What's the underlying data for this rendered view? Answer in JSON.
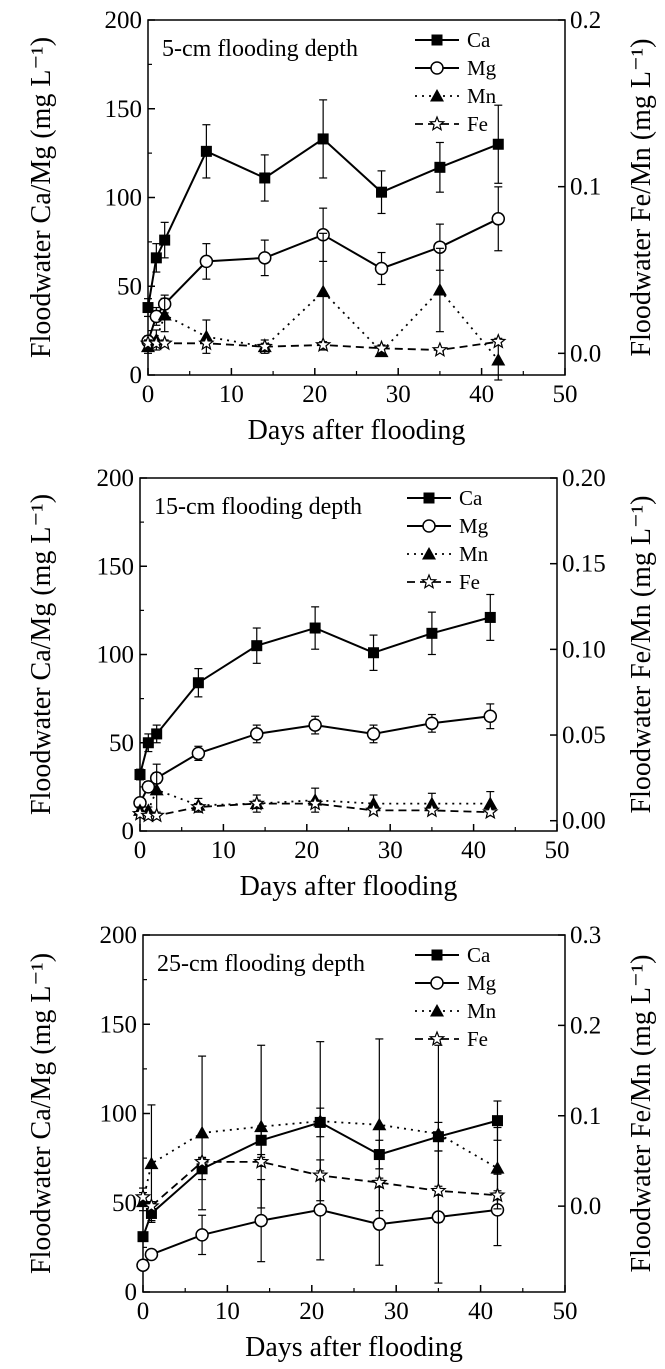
{
  "colors": {
    "ink": "#000000",
    "background": "#ffffff"
  },
  "chart_data": [
    {
      "type": "line",
      "title": "5-cm flooding depth",
      "xlabel": "Days after flooding",
      "ylabel": "Floodwater Ca/Mg (mg L⁻¹)",
      "y2label": "Floodwater Fe/Mn (mg L⁻¹)",
      "xlim": [
        0,
        50
      ],
      "ylim": [
        0,
        200
      ],
      "y2lim": [
        -0.013,
        0.2
      ],
      "xticks": [
        "0",
        "10",
        "20",
        "30",
        "40",
        "50"
      ],
      "yticks": [
        "0",
        "50",
        "100",
        "150",
        "200"
      ],
      "y2ticks": [
        "0.0",
        "0.1",
        "0.2"
      ],
      "legend_position": "top-right",
      "x": [
        0,
        1,
        2,
        7,
        14,
        21,
        28,
        35,
        42
      ],
      "series": [
        {
          "name": "Ca",
          "axis": "left",
          "marker": "square-filled",
          "line": "solid",
          "values": [
            38,
            66,
            76,
            126,
            111,
            133,
            103,
            117,
            130
          ],
          "errors": [
            5,
            8,
            10,
            15,
            13,
            22,
            12,
            14,
            22
          ]
        },
        {
          "name": "Mg",
          "axis": "left",
          "marker": "circle-open",
          "line": "solid",
          "values": [
            19,
            33,
            40,
            64,
            66,
            79,
            60,
            72,
            88
          ],
          "errors": [
            3,
            5,
            5,
            10,
            10,
            15,
            9,
            13,
            18
          ]
        },
        {
          "name": "Mn",
          "axis": "right",
          "marker": "triangle-filled",
          "line": "dotted",
          "values": [
            0.004,
            0.008,
            0.023,
            0.01,
            0.004,
            0.037,
            0.001,
            0.038,
            -0.004
          ],
          "errors": [
            0.004,
            0.006,
            0.01,
            0.01,
            0.004,
            0.035,
            0.002,
            0.025,
            0.012
          ]
        },
        {
          "name": "Fe",
          "axis": "right",
          "marker": "star-open",
          "line": "dashed",
          "values": [
            0.006,
            0.006,
            0.006,
            0.006,
            0.004,
            0.005,
            0.003,
            0.002,
            0.007
          ],
          "errors": [
            0.002,
            0.002,
            0.002,
            0.002,
            0.002,
            0.002,
            0.002,
            0.001,
            0.002
          ]
        }
      ]
    },
    {
      "type": "line",
      "title": "15-cm flooding depth",
      "xlabel": "Days after flooding",
      "ylabel": "Floodwater Ca/Mg (mg L⁻¹)",
      "y2label": "Floodwater Fe/Mn (mg L⁻¹)",
      "xlim": [
        0,
        50
      ],
      "ylim": [
        0,
        200
      ],
      "y2lim": [
        -0.006,
        0.2
      ],
      "xticks": [
        "0",
        "10",
        "20",
        "30",
        "40",
        "50"
      ],
      "yticks": [
        "0",
        "50",
        "100",
        "150",
        "200"
      ],
      "y2ticks": [
        "0.00",
        "0.05",
        "0.10",
        "0.15",
        "0.20"
      ],
      "legend_position": "top-right",
      "x": [
        0,
        1,
        2,
        7,
        14,
        21,
        28,
        35,
        42
      ],
      "series": [
        {
          "name": "Ca",
          "axis": "left",
          "marker": "square-filled",
          "line": "solid",
          "values": [
            32,
            50,
            55,
            84,
            105,
            115,
            101,
            112,
            121
          ],
          "errors": [
            3,
            5,
            5,
            8,
            10,
            12,
            10,
            12,
            13
          ]
        },
        {
          "name": "Mg",
          "axis": "left",
          "marker": "circle-open",
          "line": "solid",
          "values": [
            16,
            25,
            30,
            44,
            55,
            60,
            55,
            61,
            65
          ],
          "errors": [
            2,
            3,
            3,
            4,
            5,
            5,
            5,
            5,
            7
          ]
        },
        {
          "name": "Mn",
          "axis": "right",
          "marker": "triangle-filled",
          "line": "dotted",
          "values": [
            0.006,
            0.006,
            0.018,
            0.009,
            0.01,
            0.012,
            0.01,
            0.01,
            0.01
          ],
          "errors": [
            0.002,
            0.002,
            0.015,
            0.004,
            0.005,
            0.007,
            0.005,
            0.006,
            0.007
          ]
        },
        {
          "name": "Fe",
          "axis": "right",
          "marker": "star-open",
          "line": "dashed",
          "values": [
            0.004,
            0.003,
            0.003,
            0.008,
            0.01,
            0.01,
            0.006,
            0.006,
            0.005
          ],
          "errors": [
            0.002,
            0.002,
            0.002,
            0.002,
            0.002,
            0.002,
            0.002,
            0.002,
            0.002
          ]
        }
      ]
    },
    {
      "type": "line",
      "title": "25-cm flooding depth",
      "xlabel": "Days after flooding",
      "ylabel": "Floodwater Ca/Mg (mg L⁻¹)",
      "y2label": "Floodwater Fe/Mn (mg L⁻¹)",
      "xlim": [
        0,
        50
      ],
      "ylim": [
        0,
        200
      ],
      "y2lim": [
        -0.095,
        0.3
      ],
      "xticks": [
        "0",
        "10",
        "20",
        "30",
        "40",
        "50"
      ],
      "yticks": [
        "0",
        "50",
        "100",
        "150",
        "200"
      ],
      "y2ticks": [
        "0.0",
        "0.1",
        "0.2",
        "0.3"
      ],
      "legend_position": "top-right",
      "x": [
        0,
        1,
        7,
        14,
        21,
        28,
        35,
        42
      ],
      "series": [
        {
          "name": "Ca",
          "axis": "left",
          "marker": "square-filled",
          "line": "solid",
          "values": [
            31,
            44,
            69,
            85,
            95,
            77,
            87,
            96
          ],
          "errors": [
            0,
            4,
            6,
            8,
            8,
            8,
            8,
            11
          ]
        },
        {
          "name": "Mg",
          "axis": "left",
          "marker": "circle-open",
          "line": "solid",
          "values": [
            15,
            21,
            32,
            40,
            46,
            38,
            42,
            46
          ],
          "errors": [
            0,
            1,
            11,
            23,
            28,
            23,
            37,
            20
          ]
        },
        {
          "name": "Mn",
          "axis": "right",
          "marker": "triangle-filled",
          "line": "dotted",
          "values": [
            0.005,
            0.047,
            0.081,
            0.088,
            0.094,
            0.09,
            0.08,
            0.042
          ],
          "errors": [
            0.01,
            0.065,
            0.085,
            0.09,
            0.088,
            0.095,
            0.098,
            0.045
          ]
        },
        {
          "name": "Fe",
          "axis": "right",
          "marker": "star-open",
          "line": "dashed",
          "values": [
            0.01,
            0.0,
            0.049,
            0.049,
            0.034,
            0.026,
            0.017,
            0.012
          ],
          "errors": [
            0.01,
            0.005,
            0.005,
            0.005,
            0.005,
            0.005,
            0.005,
            0.005
          ]
        }
      ]
    }
  ]
}
